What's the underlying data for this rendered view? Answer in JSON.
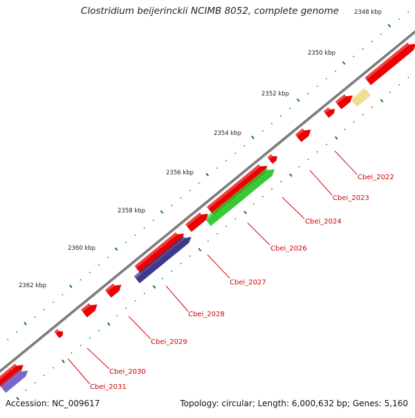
{
  "title": "Clostridium beijerinckii NCIMB 8052, complete genome",
  "footer": {
    "accession": "Accession: NC_009617",
    "summary": "Topology: circular; Length: 6,000,632 bp; Genes: 5,160"
  },
  "ruler": {
    "labels": [
      "2348 kbp",
      "2350 kbp",
      "2352 kbp",
      "2354 kbp",
      "2356 kbp",
      "2358 kbp",
      "2360 kbp",
      "2362 kbp"
    ]
  },
  "gene_labels": [
    "Cbei_2022",
    "Cbei_2023",
    "Cbei_2024",
    "Cbei_2026",
    "Cbei_2027",
    "Cbei_2028",
    "Cbei_2029",
    "Cbei_2030",
    "Cbei_2031"
  ],
  "colors": {
    "backbone": "#777777",
    "gene_red": "#ee0000",
    "gene_green": "#33cc33",
    "gene_purple": "#3d3a8c",
    "gene_violet": "#7766cc",
    "gene_yellow": "#f0e08c",
    "gene_khaki": "#c8b878",
    "gene_cyan": "#00dddd",
    "gene_blue": "#0000ee",
    "label_red": "#cc0000",
    "tick_green": "#008800"
  }
}
